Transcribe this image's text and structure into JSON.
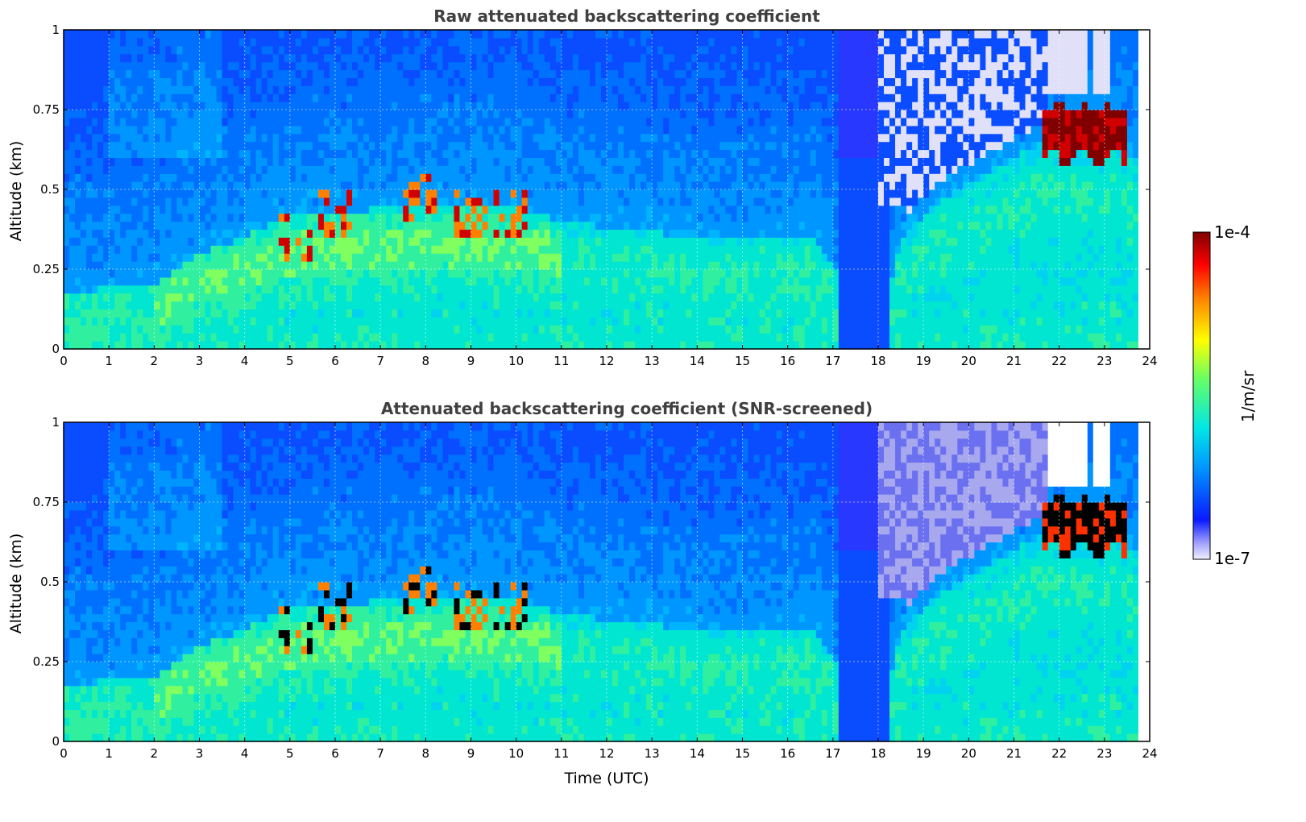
{
  "chart_data": [
    {
      "type": "heatmap",
      "title": "Raw attenuated backscattering coefficient",
      "xlabel": "",
      "ylabel": "Altitude (km)",
      "xlim": [
        0,
        24
      ],
      "ylim": [
        0,
        1
      ],
      "xticks": [
        "0",
        "1",
        "2",
        "3",
        "4",
        "5",
        "6",
        "7",
        "8",
        "9",
        "10",
        "11",
        "12",
        "13",
        "14",
        "15",
        "16",
        "17",
        "18",
        "19",
        "20",
        "21",
        "22",
        "23",
        "24"
      ],
      "yticks": [
        "0",
        "0.25",
        "0.5",
        "0.75",
        "1"
      ],
      "grid": true,
      "x_data_extent": [
        0,
        23.75
      ],
      "colorbar": "shared"
    },
    {
      "type": "heatmap",
      "title": "Attenuated backscattering coefficient (SNR-screened)",
      "xlabel": "Time (UTC)",
      "ylabel": "Altitude (km)",
      "xlim": [
        0,
        24
      ],
      "ylim": [
        0,
        1
      ],
      "xticks": [
        "0",
        "1",
        "2",
        "3",
        "4",
        "5",
        "6",
        "7",
        "8",
        "9",
        "10",
        "11",
        "12",
        "13",
        "14",
        "15",
        "16",
        "17",
        "18",
        "19",
        "20",
        "21",
        "22",
        "23",
        "24"
      ],
      "yticks": [
        "0",
        "0.25",
        "0.5",
        "0.75",
        "1"
      ],
      "grid": true,
      "x_data_extent": [
        0,
        23.75
      ],
      "colorbar": "shared"
    }
  ],
  "colorbar": {
    "label": "1/m/sr",
    "max_label": "1e-4",
    "min_label": "1e-7",
    "scale": "log",
    "colormap": "jet",
    "colors": [
      "#e6e6f8",
      "#0a1aff",
      "#0096ff",
      "#00e6e6",
      "#66ff66",
      "#ffff00",
      "#ff7f00",
      "#ff0000",
      "#800000"
    ]
  },
  "features": {
    "boundary_layer": [
      {
        "t": 0,
        "h": 0.18
      },
      {
        "t": 2,
        "h": 0.2
      },
      {
        "t": 3,
        "h": 0.3
      },
      {
        "t": 4,
        "h": 0.35
      },
      {
        "t": 5,
        "h": 0.42
      },
      {
        "t": 8,
        "h": 0.45
      },
      {
        "t": 10,
        "h": 0.45
      },
      {
        "t": 11,
        "h": 0.4
      },
      {
        "t": 14,
        "h": 0.35
      },
      {
        "t": 16.5,
        "h": 0.35
      },
      {
        "t": 17.3,
        "h": 0.2
      },
      {
        "t": 18,
        "h": 0.05
      },
      {
        "t": 18.5,
        "h": 0.35
      },
      {
        "t": 19.5,
        "h": 0.48
      },
      {
        "t": 21,
        "h": 0.6
      },
      {
        "t": 22,
        "h": 0.68
      },
      {
        "t": 23.75,
        "h": 0.6
      }
    ],
    "aerosol_plumes": [
      {
        "t": 5.1,
        "h": 0.35
      },
      {
        "t": 6.0,
        "h": 0.42
      },
      {
        "t": 7.9,
        "h": 0.48
      },
      {
        "t": 9.0,
        "h": 0.42
      },
      {
        "t": 9.9,
        "h": 0.42
      }
    ],
    "cloud_layer": {
      "t_start": 21.6,
      "t_end": 23.5,
      "h_bottom": 0.6,
      "h_top": 0.78
    },
    "sparse_region": {
      "t_start": 18.0,
      "t_end": 21.0,
      "h_bottom": 0.45,
      "h_top": 1.0
    },
    "clear_gaps": [
      {
        "t_start": 21.7,
        "t_end": 22.6
      },
      {
        "t_start": 22.8,
        "t_end": 23.15
      }
    ]
  }
}
